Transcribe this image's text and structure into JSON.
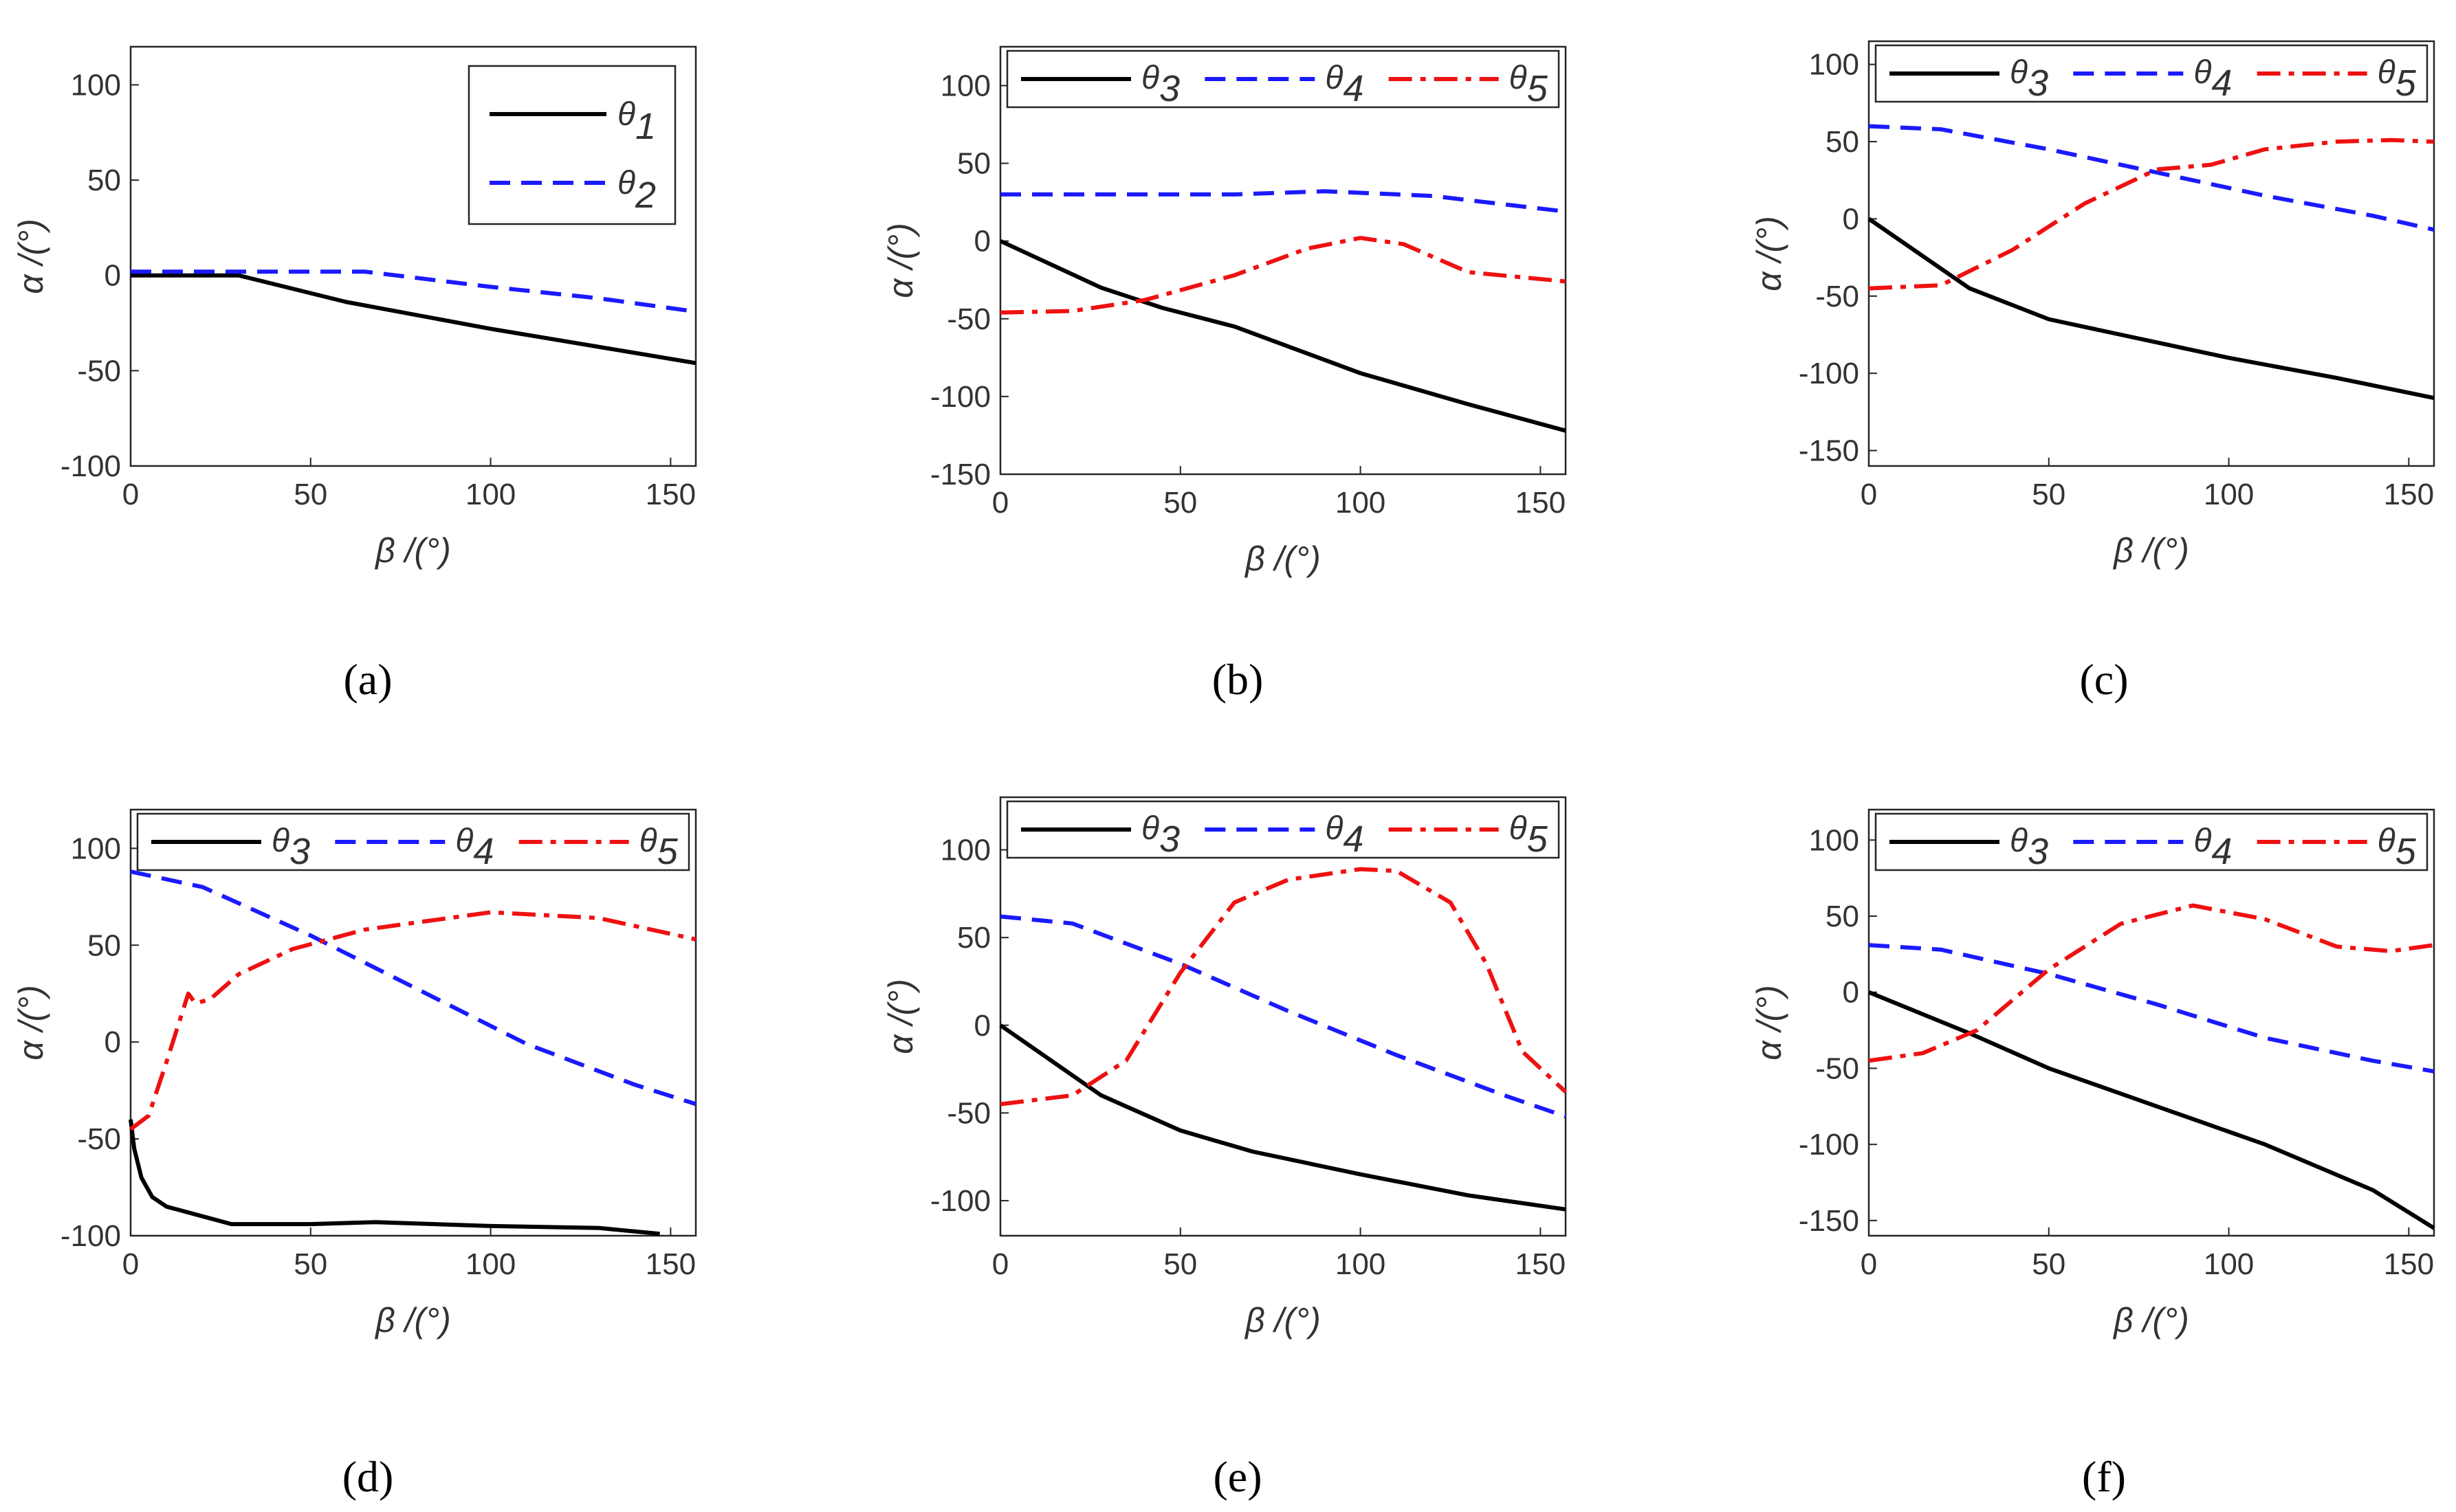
{
  "figure": {
    "captions": [
      "(a)",
      "(b)",
      "(c)",
      "(d)",
      "(e)",
      "(f)"
    ]
  },
  "chart_data": [
    {
      "type": "line",
      "panel": "a",
      "title": "",
      "xlabel": "β /(°)",
      "ylabel": "α /(°)",
      "xlim": [
        0,
        157
      ],
      "ylim": [
        -100,
        120
      ],
      "xticks": [
        0,
        50,
        100,
        150
      ],
      "yticks": [
        -100,
        -50,
        0,
        50,
        100
      ],
      "grid": false,
      "legend_placement": "top-right",
      "legend_layout": "vertical",
      "series": [
        {
          "name": "θ1",
          "base": "θ",
          "sub": "1",
          "color": "#000000",
          "style": "solid",
          "x": [
            0,
            30,
            60,
            100,
            157
          ],
          "y": [
            0,
            0,
            -14,
            -28,
            -46
          ]
        },
        {
          "name": "θ2",
          "base": "θ",
          "sub": "2",
          "color": "#1a1aff",
          "style": "dash",
          "x": [
            0,
            30,
            65,
            100,
            130,
            157
          ],
          "y": [
            2,
            2,
            2,
            -6,
            -12,
            -19
          ]
        }
      ]
    },
    {
      "type": "line",
      "panel": "b",
      "title": "",
      "xlabel": "β /(°)",
      "ylabel": "α /(°)",
      "xlim": [
        0,
        157
      ],
      "ylim": [
        -150,
        125
      ],
      "xticks": [
        0,
        50,
        100,
        150
      ],
      "yticks": [
        -150,
        -100,
        -50,
        0,
        50,
        100
      ],
      "grid": false,
      "legend_placement": "top",
      "legend_layout": "horizontal",
      "series": [
        {
          "name": "θ3",
          "base": "θ",
          "sub": "3",
          "color": "#000000",
          "style": "solid",
          "x": [
            0,
            28,
            45,
            65,
            100,
            130,
            157
          ],
          "y": [
            0,
            -30,
            -43,
            -55,
            -85,
            -105,
            -122
          ]
        },
        {
          "name": "θ4",
          "base": "θ",
          "sub": "4",
          "color": "#1a1aff",
          "style": "dash",
          "x": [
            0,
            65,
            90,
            120,
            157
          ],
          "y": [
            30,
            30,
            32,
            29,
            19
          ]
        },
        {
          "name": "θ5",
          "base": "θ",
          "sub": "5",
          "color": "#ee1111",
          "style": "dashdot",
          "x": [
            0,
            20,
            40,
            65,
            85,
            100,
            112,
            130,
            157
          ],
          "y": [
            -46,
            -45,
            -38,
            -22,
            -5,
            2,
            -2,
            -20,
            -26
          ]
        }
      ]
    },
    {
      "type": "line",
      "panel": "c",
      "title": "",
      "xlabel": "β /(°)",
      "ylabel": "α /(°)",
      "xlim": [
        0,
        157
      ],
      "ylim": [
        -160,
        115
      ],
      "xticks": [
        0,
        50,
        100,
        150
      ],
      "yticks": [
        -150,
        -100,
        -50,
        0,
        50,
        100
      ],
      "grid": false,
      "legend_placement": "top",
      "legend_layout": "horizontal",
      "series": [
        {
          "name": "θ3",
          "base": "θ",
          "sub": "3",
          "color": "#000000",
          "style": "solid",
          "x": [
            0,
            28,
            50,
            70,
            100,
            130,
            157
          ],
          "y": [
            0,
            -45,
            -65,
            -75,
            -90,
            -103,
            -116
          ]
        },
        {
          "name": "θ4",
          "base": "θ",
          "sub": "4",
          "color": "#1a1aff",
          "style": "dash",
          "x": [
            0,
            20,
            50,
            80,
            110,
            140,
            157
          ],
          "y": [
            60,
            58,
            45,
            30,
            15,
            2,
            -7
          ]
        },
        {
          "name": "θ5",
          "base": "θ",
          "sub": "5",
          "color": "#ee1111",
          "style": "dashdot",
          "x": [
            0,
            20,
            40,
            60,
            80,
            95,
            110,
            130,
            145,
            157
          ],
          "y": [
            -45,
            -43,
            -20,
            10,
            32,
            35,
            45,
            50,
            51,
            50
          ]
        }
      ]
    },
    {
      "type": "line",
      "panel": "d",
      "title": "",
      "xlabel": "β /(°)",
      "ylabel": "α /(°)",
      "xlim": [
        0,
        157
      ],
      "ylim": [
        -100,
        120
      ],
      "xticks": [
        0,
        50,
        100,
        150
      ],
      "yticks": [
        -100,
        -50,
        0,
        50,
        100
      ],
      "grid": false,
      "legend_placement": "top",
      "legend_layout": "horizontal",
      "series": [
        {
          "name": "θ3",
          "base": "θ",
          "sub": "3",
          "color": "#000000",
          "style": "solid",
          "x": [
            0,
            1,
            3,
            6,
            10,
            20,
            28,
            50,
            68,
            100,
            130,
            147
          ],
          "y": [
            -40,
            -55,
            -70,
            -80,
            -85,
            -90,
            -94,
            -94,
            -93,
            -95,
            -96,
            -99
          ]
        },
        {
          "name": "θ4",
          "base": "θ",
          "sub": "4",
          "color": "#1a1aff",
          "style": "dash",
          "x": [
            0,
            20,
            50,
            80,
            110,
            140,
            157
          ],
          "y": [
            88,
            80,
            55,
            27,
            -1,
            -22,
            -32
          ]
        },
        {
          "name": "θ5",
          "base": "θ",
          "sub": "5",
          "color": "#ee1111",
          "style": "dashdot",
          "x": [
            0,
            5,
            10,
            16,
            18,
            22,
            30,
            45,
            65,
            100,
            130,
            157
          ],
          "y": [
            -45,
            -38,
            -10,
            25,
            20,
            22,
            35,
            48,
            58,
            67,
            64,
            53
          ]
        }
      ]
    },
    {
      "type": "line",
      "panel": "e",
      "title": "",
      "xlabel": "β /(°)",
      "ylabel": "α /(°)",
      "xlim": [
        0,
        157
      ],
      "ylim": [
        -120,
        130
      ],
      "xticks": [
        0,
        50,
        100,
        150
      ],
      "yticks": [
        -100,
        -50,
        0,
        50,
        100
      ],
      "grid": false,
      "legend_placement": "top",
      "legend_layout": "horizontal",
      "series": [
        {
          "name": "θ3",
          "base": "θ",
          "sub": "3",
          "color": "#000000",
          "style": "solid",
          "x": [
            0,
            28,
            50,
            70,
            100,
            130,
            157
          ],
          "y": [
            0,
            -40,
            -60,
            -72,
            -85,
            -97,
            -105
          ]
        },
        {
          "name": "θ4",
          "base": "θ",
          "sub": "4",
          "color": "#1a1aff",
          "style": "dash",
          "x": [
            0,
            20,
            50,
            80,
            110,
            140,
            157
          ],
          "y": [
            62,
            58,
            35,
            8,
            -17,
            -40,
            -52
          ]
        },
        {
          "name": "θ5",
          "base": "θ",
          "sub": "5",
          "color": "#ee1111",
          "style": "dashdot",
          "x": [
            0,
            20,
            35,
            50,
            65,
            80,
            100,
            110,
            125,
            135,
            145,
            157
          ],
          "y": [
            -45,
            -40,
            -20,
            30,
            70,
            83,
            89,
            88,
            70,
            35,
            -15,
            -38
          ]
        }
      ]
    },
    {
      "type": "line",
      "panel": "f",
      "title": "",
      "xlabel": "β /(°)",
      "ylabel": "α /(°)",
      "xlim": [
        0,
        157
      ],
      "ylim": [
        -160,
        120
      ],
      "xticks": [
        0,
        50,
        100,
        150
      ],
      "yticks": [
        -150,
        -100,
        -50,
        0,
        50,
        100
      ],
      "grid": false,
      "legend_placement": "top",
      "legend_layout": "horizontal",
      "series": [
        {
          "name": "θ3",
          "base": "θ",
          "sub": "3",
          "color": "#000000",
          "style": "solid",
          "x": [
            0,
            28,
            50,
            80,
            110,
            140,
            157
          ],
          "y": [
            0,
            -27,
            -50,
            -75,
            -100,
            -130,
            -155
          ]
        },
        {
          "name": "θ4",
          "base": "θ",
          "sub": "4",
          "color": "#1a1aff",
          "style": "dash",
          "x": [
            0,
            20,
            50,
            80,
            110,
            140,
            157
          ],
          "y": [
            31,
            28,
            12,
            -8,
            -30,
            -45,
            -52
          ]
        },
        {
          "name": "θ5",
          "base": "θ",
          "sub": "5",
          "color": "#ee1111",
          "style": "dashdot",
          "x": [
            0,
            15,
            30,
            50,
            70,
            90,
            110,
            130,
            145,
            157
          ],
          "y": [
            -45,
            -40,
            -25,
            15,
            45,
            57,
            48,
            30,
            27,
            31
          ]
        }
      ]
    }
  ]
}
